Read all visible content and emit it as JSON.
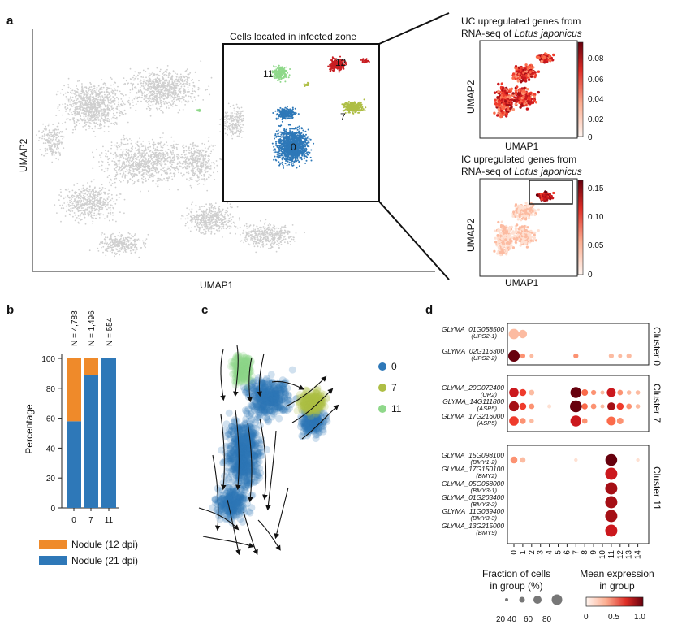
{
  "panel_labels": {
    "a": "a",
    "b": "b",
    "c": "c",
    "d": "d"
  },
  "panel_a": {
    "title": "Cells located in infected zone",
    "xlabel": "UMAP1",
    "ylabel": "UMAP2",
    "cluster_labels": [
      "0",
      "7",
      "11",
      "12"
    ],
    "colors": {
      "0": "#2e78b8",
      "7": "#aebe45",
      "11": "#8fd88a",
      "12": "#c81e22",
      "background": "#cfcfcf"
    },
    "uc_title_1": "UC upregulated genes from",
    "uc_title_2a": "RNA-seq of ",
    "uc_title_2b": "Lotus japonicus",
    "uc_xlabel": "UMAP1",
    "uc_ylabel": "UMAP2",
    "uc_colorbar_ticks": [
      "0.08",
      "0.06",
      "0.04",
      "0.02",
      "0"
    ],
    "ic_title_1": "IC upregulated genes from",
    "ic_title_2a": "RNA-seq of ",
    "ic_title_2b": "Lotus japonicus",
    "ic_xlabel": "UMAP1",
    "ic_ylabel": "UMAP2",
    "ic_colorbar_ticks": [
      "0.15",
      "0.10",
      "0.05",
      "0"
    ]
  },
  "chart_data": {
    "type": "bar",
    "stacked": true,
    "categories": [
      "0",
      "7",
      "11"
    ],
    "n_labels": [
      "N = 4,788",
      "N = 1,496",
      "N = 554"
    ],
    "series": [
      {
        "name": "Nodule (21 dpi)",
        "values": [
          58,
          89,
          100
        ],
        "color": "#2e78b8"
      },
      {
        "name": "Nodule (12 dpi)",
        "values": [
          42,
          11,
          0
        ],
        "color": "#ef8a2a"
      }
    ],
    "ylabel": "Percentage",
    "yticks": [
      "0",
      "20",
      "40",
      "60",
      "80",
      "100"
    ],
    "ylim": [
      0,
      100
    ]
  },
  "panel_c": {
    "legend": [
      {
        "label": "0",
        "color": "#2e78b8"
      },
      {
        "label": "7",
        "color": "#aebe45"
      },
      {
        "label": "11",
        "color": "#8fd88a"
      }
    ]
  },
  "panel_d": {
    "x_categories": [
      "0",
      "1",
      "2",
      "3",
      "4",
      "5",
      "6",
      "7",
      "8",
      "9",
      "10",
      "11",
      "12",
      "13",
      "14"
    ],
    "groups": [
      {
        "name": "Cluster 0",
        "genes": [
          {
            "id": "GLYMA_01G058500",
            "alias": "(UPS2-1)"
          },
          {
            "id": "GLYMA_02G116300",
            "alias": "(UPS2-2)"
          }
        ]
      },
      {
        "name": "Cluster 7",
        "genes": [
          {
            "id": "GLYMA_20G072400",
            "alias": "(UR2)"
          },
          {
            "id": "GLYMA_14G111800",
            "alias": "(ASP5)"
          },
          {
            "id": "GLYMA_17G216000",
            "alias": "(ASP5)"
          }
        ]
      },
      {
        "name": "Cluster 11",
        "genes": [
          {
            "id": "GLYMA_15G098100",
            "alias": "(BMY1-2)"
          },
          {
            "id": "GLYMA_17G150100",
            "alias": "(BMY2)"
          },
          {
            "id": "GLYMA_05G068000",
            "alias": "(BMY3-1)"
          },
          {
            "id": "GLYMA_01G203400",
            "alias": "(BMY3-2)"
          },
          {
            "id": "GLYMA_11G039400",
            "alias": "(BMY3-3)"
          },
          {
            "id": "GLYMA_13G215000",
            "alias": "(BMY9)"
          }
        ]
      }
    ],
    "dots": [
      [
        [
          0.3,
          0.8
        ],
        [
          0.25,
          0.6
        ],
        [
          0,
          0
        ],
        [
          0,
          0
        ],
        [
          0,
          0
        ],
        [
          0,
          0
        ],
        [
          0,
          0
        ],
        [
          0,
          0
        ],
        [
          0,
          0
        ],
        [
          0,
          0
        ],
        [
          0,
          0
        ],
        [
          0,
          0
        ],
        [
          0,
          0
        ],
        [
          0,
          0
        ],
        [
          0,
          0
        ]
      ],
      [
        [
          0.95,
          0.9
        ],
        [
          0.4,
          0.25
        ],
        [
          0.2,
          0.15
        ],
        [
          0,
          0
        ],
        [
          0,
          0
        ],
        [
          0,
          0
        ],
        [
          0,
          0
        ],
        [
          0.35,
          0.25
        ],
        [
          0,
          0
        ],
        [
          0,
          0
        ],
        [
          0,
          0
        ],
        [
          0.3,
          0.25
        ],
        [
          0.2,
          0.15
        ],
        [
          0.25,
          0.25
        ],
        [
          0,
          0
        ]
      ],
      [
        [
          0.7,
          0.7
        ],
        [
          0.6,
          0.45
        ],
        [
          0.3,
          0.3
        ],
        [
          0,
          0
        ],
        [
          0,
          0
        ],
        [
          0,
          0
        ],
        [
          0,
          0
        ],
        [
          1.0,
          0.85
        ],
        [
          0.45,
          0.4
        ],
        [
          0.35,
          0.25
        ],
        [
          0.25,
          0.15
        ],
        [
          0.75,
          0.65
        ],
        [
          0.35,
          0.3
        ],
        [
          0.2,
          0.2
        ],
        [
          0.25,
          0.2
        ]
      ],
      [
        [
          0.85,
          0.75
        ],
        [
          0.6,
          0.45
        ],
        [
          0.4,
          0.3
        ],
        [
          0,
          0
        ],
        [
          0.15,
          0.15
        ],
        [
          0,
          0
        ],
        [
          0,
          0
        ],
        [
          1.0,
          0.95
        ],
        [
          0.45,
          0.35
        ],
        [
          0.35,
          0.3
        ],
        [
          0.2,
          0.15
        ],
        [
          0.9,
          0.55
        ],
        [
          0.6,
          0.45
        ],
        [
          0.35,
          0.3
        ],
        [
          0.3,
          0.2
        ]
      ],
      [
        [
          0.6,
          0.7
        ],
        [
          0.4,
          0.35
        ],
        [
          0.25,
          0.2
        ],
        [
          0,
          0
        ],
        [
          0,
          0
        ],
        [
          0,
          0
        ],
        [
          0,
          0
        ],
        [
          0.7,
          0.85
        ],
        [
          0.35,
          0.3
        ],
        [
          0,
          0
        ],
        [
          0,
          0
        ],
        [
          0.55,
          0.65
        ],
        [
          0.35,
          0.4
        ],
        [
          0,
          0
        ],
        [
          0,
          0
        ]
      ],
      [
        [
          0.35,
          0.45
        ],
        [
          0.3,
          0.3
        ],
        [
          0,
          0
        ],
        [
          0,
          0
        ],
        [
          0,
          0
        ],
        [
          0,
          0
        ],
        [
          0,
          0
        ],
        [
          0.1,
          0.1
        ],
        [
          0,
          0
        ],
        [
          0,
          0
        ],
        [
          0,
          0
        ],
        [
          1.0,
          0.95
        ],
        [
          0,
          0
        ],
        [
          0,
          0
        ],
        [
          0.1,
          0.1
        ]
      ],
      [
        [
          0,
          0
        ],
        [
          0,
          0
        ],
        [
          0,
          0
        ],
        [
          0,
          0
        ],
        [
          0,
          0
        ],
        [
          0,
          0
        ],
        [
          0,
          0
        ],
        [
          0,
          0
        ],
        [
          0,
          0
        ],
        [
          0,
          0
        ],
        [
          0,
          0
        ],
        [
          0.8,
          0.98
        ],
        [
          0,
          0
        ],
        [
          0,
          0
        ],
        [
          0,
          0
        ]
      ],
      [
        [
          0,
          0
        ],
        [
          0,
          0
        ],
        [
          0,
          0
        ],
        [
          0,
          0
        ],
        [
          0,
          0
        ],
        [
          0,
          0
        ],
        [
          0,
          0
        ],
        [
          0,
          0
        ],
        [
          0,
          0
        ],
        [
          0,
          0
        ],
        [
          0,
          0
        ],
        [
          0.85,
          0.98
        ],
        [
          0,
          0
        ],
        [
          0,
          0
        ],
        [
          0,
          0
        ]
      ],
      [
        [
          0,
          0
        ],
        [
          0,
          0
        ],
        [
          0,
          0
        ],
        [
          0,
          0
        ],
        [
          0,
          0
        ],
        [
          0,
          0
        ],
        [
          0,
          0
        ],
        [
          0,
          0
        ],
        [
          0,
          0
        ],
        [
          0,
          0
        ],
        [
          0,
          0
        ],
        [
          0.9,
          0.98
        ],
        [
          0,
          0
        ],
        [
          0,
          0
        ],
        [
          0,
          0
        ]
      ],
      [
        [
          0,
          0
        ],
        [
          0,
          0
        ],
        [
          0,
          0
        ],
        [
          0,
          0
        ],
        [
          0,
          0
        ],
        [
          0,
          0
        ],
        [
          0,
          0
        ],
        [
          0,
          0
        ],
        [
          0,
          0
        ],
        [
          0,
          0
        ],
        [
          0,
          0
        ],
        [
          0.85,
          0.98
        ],
        [
          0,
          0
        ],
        [
          0,
          0
        ],
        [
          0,
          0
        ]
      ],
      [
        [
          0,
          0
        ],
        [
          0,
          0
        ],
        [
          0,
          0
        ],
        [
          0,
          0
        ],
        [
          0,
          0
        ],
        [
          0,
          0
        ],
        [
          0,
          0
        ],
        [
          0,
          0
        ],
        [
          0,
          0
        ],
        [
          0,
          0
        ],
        [
          0,
          0
        ],
        [
          0.8,
          0.98
        ],
        [
          0,
          0
        ],
        [
          0,
          0
        ],
        [
          0,
          0
        ]
      ]
    ],
    "size_legend_title_1": "Fraction of cells",
    "size_legend_title_2": "in group (%)",
    "size_legend_values": [
      "20",
      "40",
      "60",
      "80"
    ],
    "color_legend_title_1": "Mean expression",
    "color_legend_title_2": "in group",
    "color_legend_ticks": [
      "0",
      "0.5",
      "1.0"
    ]
  }
}
